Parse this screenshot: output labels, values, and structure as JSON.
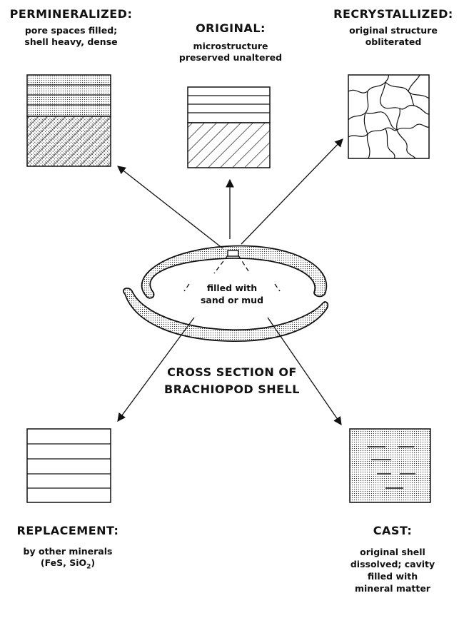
{
  "states": {
    "permineralized": {
      "title": "PERMINERALIZED:",
      "desc": [
        "pore spaces filled;",
        "shell heavy, dense"
      ]
    },
    "original": {
      "title": "ORIGINAL:",
      "desc": [
        "microstructure",
        "preserved unaltered"
      ]
    },
    "recrystallized": {
      "title": "RECRYSTALLIZED:",
      "desc": [
        "original structure",
        "obliterated"
      ]
    },
    "replacement": {
      "title": "REPLACEMENT:",
      "desc": [
        "by other minerals",
        "(FeS, SiO",
        "2",
        ")"
      ]
    },
    "cast": {
      "title": "CAST:",
      "desc": [
        "original shell",
        "dissolved; cavity",
        "filled with",
        "mineral matter"
      ]
    }
  },
  "shell": {
    "fill_label": [
      "filled with",
      "sand or mud"
    ],
    "caption": [
      "CROSS SECTION OF",
      "BRACHIOPOD SHELL"
    ]
  }
}
